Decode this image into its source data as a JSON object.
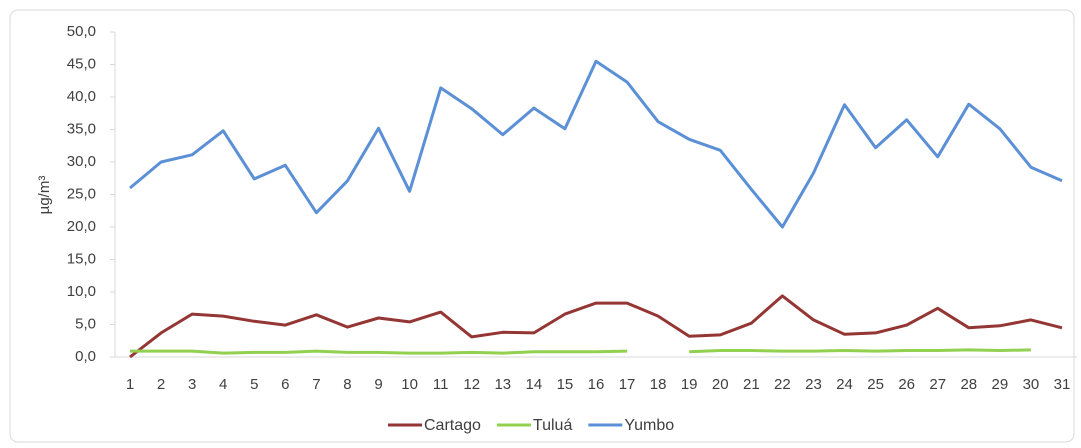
{
  "chart_data": {
    "type": "line",
    "y_label": "µg/m³",
    "categories": [
      "1",
      "2",
      "3",
      "4",
      "5",
      "6",
      "7",
      "8",
      "9",
      "10",
      "11",
      "12",
      "13",
      "14",
      "15",
      "16",
      "17",
      "18",
      "19",
      "20",
      "21",
      "22",
      "23",
      "24",
      "25",
      "26",
      "27",
      "28",
      "29",
      "30",
      "31"
    ],
    "series": [
      {
        "name": "Cartago",
        "color": "#943634",
        "values": [
          0.0,
          3.7,
          6.6,
          6.3,
          5.5,
          4.9,
          6.5,
          4.6,
          6.0,
          5.4,
          6.9,
          3.1,
          3.8,
          3.7,
          6.6,
          8.3,
          8.3,
          6.3,
          3.2,
          3.4,
          5.2,
          9.4,
          5.7,
          3.5,
          3.7,
          4.9,
          7.5,
          4.5,
          4.8,
          5.7,
          4.5
        ]
      },
      {
        "name": "Tuluá",
        "color": "#92d050",
        "values": [
          0.9,
          0.9,
          0.9,
          0.6,
          0.7,
          0.7,
          0.9,
          0.7,
          0.7,
          0.6,
          0.6,
          0.7,
          0.6,
          0.8,
          0.8,
          0.8,
          0.9,
          null,
          0.8,
          1.0,
          1.0,
          0.9,
          0.9,
          1.0,
          0.9,
          1.0,
          1.0,
          1.1,
          1.0,
          1.1,
          null
        ]
      },
      {
        "name": "Yumbo",
        "color": "#5b8fd6",
        "values": [
          26.0,
          30.0,
          31.1,
          34.8,
          27.4,
          29.5,
          22.2,
          27.1,
          35.2,
          25.5,
          41.4,
          38.2,
          34.2,
          38.3,
          35.1,
          45.5,
          42.3,
          36.2,
          33.5,
          31.8,
          25.8,
          20.0,
          28.3,
          38.8,
          32.2,
          36.5,
          30.8,
          38.9,
          35.1,
          29.2,
          27.1
        ]
      }
    ],
    "ylim": [
      0,
      50
    ],
    "yticks": [
      {
        "value": 0,
        "label": "0,0"
      },
      {
        "value": 5,
        "label": "5,0"
      },
      {
        "value": 10,
        "label": "10,0"
      },
      {
        "value": 15,
        "label": "15,0"
      },
      {
        "value": 20,
        "label": "20,0"
      },
      {
        "value": 25,
        "label": "25,0"
      },
      {
        "value": 30,
        "label": "30,0"
      },
      {
        "value": 35,
        "label": "35,0"
      },
      {
        "value": 40,
        "label": "40,0"
      },
      {
        "value": 45,
        "label": "45,0"
      },
      {
        "value": 50,
        "label": "50,0"
      }
    ],
    "legend": "bottom"
  }
}
